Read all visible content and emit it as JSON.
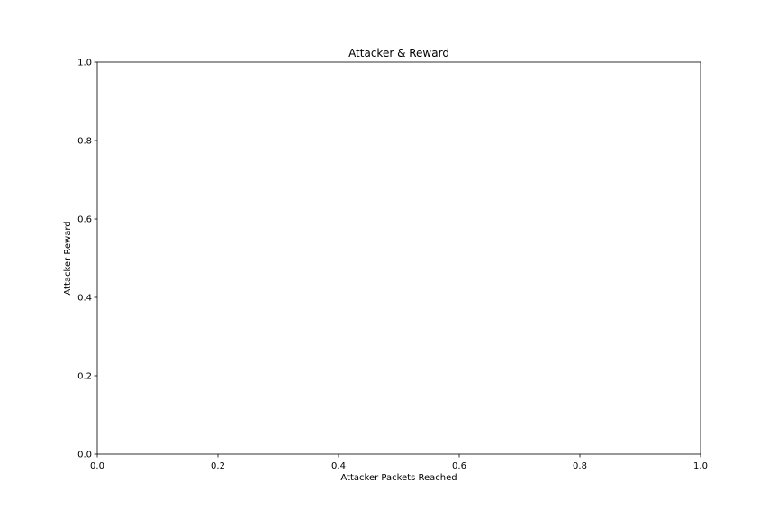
{
  "chart_data": {
    "type": "line",
    "title": "Attacker & Reward",
    "xlabel": "Attacker Packets Reached",
    "ylabel": "Attacker Reward",
    "xlim": [
      0,
      1
    ],
    "ylim": [
      0,
      1
    ],
    "x_ticks": [
      "0.0",
      "0.2",
      "0.4",
      "0.6",
      "0.8",
      "1.0"
    ],
    "y_ticks": [
      "0.0",
      "0.2",
      "0.4",
      "0.6",
      "0.8",
      "1.0"
    ],
    "grid": false,
    "series": []
  }
}
